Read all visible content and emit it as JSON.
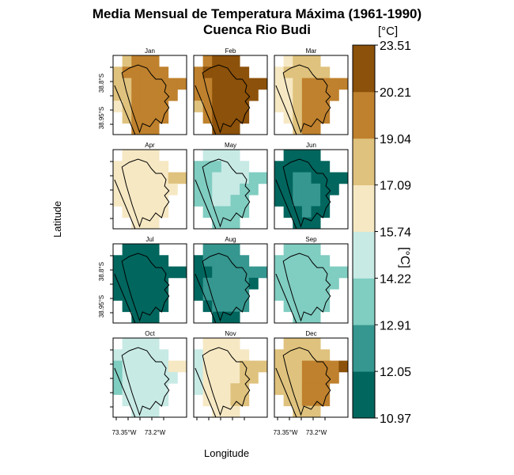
{
  "title_line1": "Media Mensual de Temperatura Máxima (1961-1990)",
  "title_line2": "Cuenca Rio Budi",
  "chart_data": {
    "type": "heatmap",
    "xlabel": "Longitude",
    "ylabel": "Latitude",
    "x_tick_labels": [
      "73.35°W",
      "73.2°W"
    ],
    "y_tick_labels": [
      "38.8°S",
      "38.95°S"
    ],
    "legend": {
      "title": "[°C]",
      "side_label": "[°C]",
      "breaks": [
        "10.97",
        "12.05",
        "12.91",
        "14.22",
        "15.74",
        "17.09",
        "19.04",
        "20.21",
        "23.51"
      ],
      "colors": [
        "#01665e",
        "#35978f",
        "#80cdc1",
        "#c7eae5",
        "#f6e8c3",
        "#dfc27d",
        "#bf812d",
        "#8c510a"
      ]
    },
    "months": [
      {
        "name": "Jan",
        "grid": [
          [
            -1,
            5,
            6,
            6,
            6,
            -1,
            -1,
            -1
          ],
          [
            5,
            6,
            6,
            6,
            6,
            6,
            -1,
            -1
          ],
          [
            5,
            5,
            6,
            6,
            6,
            6,
            6,
            6
          ],
          [
            5,
            5,
            6,
            6,
            6,
            6,
            6,
            -1
          ],
          [
            4,
            5,
            6,
            6,
            6,
            6,
            -1,
            -1
          ],
          [
            -1,
            5,
            6,
            6,
            6,
            6,
            -1,
            -1
          ],
          [
            -1,
            -1,
            6,
            6,
            6,
            -1,
            -1,
            -1
          ]
        ]
      },
      {
        "name": "Feb",
        "grid": [
          [
            -1,
            6,
            7,
            7,
            7,
            -1,
            -1,
            -1
          ],
          [
            6,
            7,
            7,
            7,
            7,
            7,
            -1,
            -1
          ],
          [
            6,
            6,
            7,
            7,
            7,
            7,
            7,
            7
          ],
          [
            6,
            6,
            7,
            7,
            7,
            7,
            7,
            -1
          ],
          [
            5,
            6,
            7,
            7,
            7,
            7,
            -1,
            -1
          ],
          [
            -1,
            6,
            7,
            7,
            7,
            7,
            -1,
            -1
          ],
          [
            -1,
            -1,
            7,
            7,
            7,
            -1,
            -1,
            -1
          ]
        ]
      },
      {
        "name": "Mar",
        "grid": [
          [
            -1,
            4,
            5,
            5,
            5,
            -1,
            -1,
            -1
          ],
          [
            4,
            5,
            5,
            5,
            5,
            5,
            -1,
            -1
          ],
          [
            4,
            4,
            5,
            6,
            6,
            6,
            6,
            6
          ],
          [
            4,
            4,
            5,
            6,
            6,
            6,
            6,
            -1
          ],
          [
            4,
            4,
            5,
            6,
            6,
            6,
            -1,
            -1
          ],
          [
            -1,
            4,
            5,
            6,
            6,
            6,
            -1,
            -1
          ],
          [
            -1,
            -1,
            5,
            6,
            6,
            -1,
            -1,
            -1
          ]
        ]
      },
      {
        "name": "Apr",
        "grid": [
          [
            -1,
            4,
            4,
            4,
            4,
            -1,
            -1,
            -1
          ],
          [
            4,
            4,
            4,
            4,
            4,
            4,
            -1,
            -1
          ],
          [
            4,
            4,
            4,
            4,
            4,
            4,
            5,
            5
          ],
          [
            4,
            4,
            4,
            4,
            4,
            4,
            4,
            -1
          ],
          [
            4,
            4,
            4,
            4,
            4,
            4,
            -1,
            -1
          ],
          [
            -1,
            4,
            4,
            4,
            4,
            4,
            -1,
            -1
          ],
          [
            -1,
            -1,
            4,
            4,
            4,
            -1,
            -1,
            -1
          ]
        ]
      },
      {
        "name": "May",
        "grid": [
          [
            -1,
            3,
            3,
            3,
            3,
            -1,
            -1,
            -1
          ],
          [
            2,
            2,
            2,
            3,
            3,
            3,
            -1,
            -1
          ],
          [
            2,
            2,
            3,
            3,
            3,
            3,
            2,
            2
          ],
          [
            2,
            2,
            3,
            3,
            3,
            2,
            2,
            -1
          ],
          [
            2,
            2,
            3,
            3,
            2,
            2,
            -1,
            -1
          ],
          [
            -1,
            2,
            2,
            2,
            2,
            2,
            -1,
            -1
          ],
          [
            -1,
            -1,
            2,
            2,
            2,
            -1,
            -1,
            -1
          ]
        ]
      },
      {
        "name": "Jun",
        "grid": [
          [
            -1,
            0,
            0,
            0,
            0,
            -1,
            -1,
            -1
          ],
          [
            0,
            0,
            0,
            0,
            0,
            0,
            -1,
            -1
          ],
          [
            0,
            0,
            1,
            1,
            0,
            0,
            0,
            0
          ],
          [
            0,
            0,
            1,
            1,
            1,
            0,
            0,
            -1
          ],
          [
            0,
            0,
            1,
            1,
            1,
            0,
            -1,
            -1
          ],
          [
            -1,
            0,
            0,
            1,
            0,
            0,
            -1,
            -1
          ],
          [
            -1,
            -1,
            0,
            0,
            0,
            -1,
            -1,
            -1
          ]
        ]
      },
      {
        "name": "Jul",
        "grid": [
          [
            -1,
            0,
            0,
            0,
            0,
            -1,
            -1,
            -1
          ],
          [
            0,
            0,
            0,
            0,
            0,
            0,
            -1,
            -1
          ],
          [
            0,
            0,
            0,
            0,
            0,
            0,
            0,
            0
          ],
          [
            0,
            0,
            0,
            0,
            0,
            0,
            -1,
            -1
          ],
          [
            0,
            0,
            0,
            0,
            0,
            0,
            -1,
            -1
          ],
          [
            -1,
            0,
            0,
            0,
            0,
            0,
            -1,
            -1
          ],
          [
            -1,
            -1,
            0,
            0,
            0,
            -1,
            -1,
            -1
          ]
        ]
      },
      {
        "name": "Aug",
        "grid": [
          [
            -1,
            1,
            1,
            1,
            1,
            -1,
            -1,
            -1
          ],
          [
            0,
            1,
            1,
            1,
            1,
            1,
            -1,
            -1
          ],
          [
            0,
            0,
            1,
            1,
            1,
            1,
            1,
            1
          ],
          [
            0,
            1,
            1,
            1,
            1,
            1,
            0,
            -1
          ],
          [
            0,
            1,
            1,
            1,
            1,
            1,
            -1,
            -1
          ],
          [
            -1,
            0,
            1,
            1,
            1,
            1,
            -1,
            -1
          ],
          [
            -1,
            -1,
            0,
            0,
            0,
            -1,
            -1,
            -1
          ]
        ]
      },
      {
        "name": "Sep",
        "grid": [
          [
            -1,
            2,
            2,
            2,
            2,
            -1,
            -1,
            -1
          ],
          [
            2,
            2,
            2,
            2,
            2,
            2,
            -1,
            -1
          ],
          [
            2,
            2,
            2,
            2,
            2,
            2,
            2,
            2
          ],
          [
            2,
            2,
            2,
            2,
            2,
            2,
            2,
            -1
          ],
          [
            2,
            2,
            2,
            2,
            2,
            2,
            -1,
            -1
          ],
          [
            -1,
            2,
            2,
            2,
            2,
            2,
            -1,
            -1
          ],
          [
            -1,
            -1,
            2,
            2,
            2,
            -1,
            -1,
            -1
          ]
        ]
      },
      {
        "name": "Oct",
        "grid": [
          [
            -1,
            3,
            3,
            3,
            3,
            -1,
            -1,
            -1
          ],
          [
            3,
            3,
            3,
            3,
            3,
            3,
            -1,
            -1
          ],
          [
            2,
            3,
            3,
            3,
            3,
            3,
            4,
            4
          ],
          [
            2,
            3,
            3,
            3,
            3,
            3,
            3,
            -1
          ],
          [
            2,
            3,
            3,
            3,
            3,
            3,
            -1,
            -1
          ],
          [
            -1,
            3,
            3,
            3,
            3,
            3,
            -1,
            -1
          ],
          [
            -1,
            -1,
            3,
            3,
            3,
            -1,
            -1,
            -1
          ]
        ]
      },
      {
        "name": "Nov",
        "grid": [
          [
            -1,
            4,
            4,
            4,
            4,
            -1,
            -1,
            -1
          ],
          [
            3,
            4,
            4,
            4,
            4,
            4,
            -1,
            -1
          ],
          [
            3,
            4,
            4,
            4,
            4,
            5,
            5,
            5
          ],
          [
            3,
            4,
            4,
            4,
            4,
            5,
            5,
            -1
          ],
          [
            3,
            4,
            4,
            4,
            5,
            5,
            -1,
            -1
          ],
          [
            -1,
            4,
            4,
            4,
            5,
            5,
            -1,
            -1
          ],
          [
            -1,
            -1,
            4,
            4,
            4,
            -1,
            -1,
            -1
          ]
        ]
      },
      {
        "name": "Dec",
        "grid": [
          [
            -1,
            5,
            5,
            5,
            5,
            -1,
            -1,
            -1
          ],
          [
            5,
            5,
            5,
            5,
            5,
            5,
            -1,
            -1
          ],
          [
            5,
            5,
            5,
            6,
            6,
            6,
            6,
            7
          ],
          [
            5,
            5,
            5,
            6,
            6,
            6,
            6,
            -1
          ],
          [
            5,
            5,
            5,
            6,
            6,
            6,
            -1,
            -1
          ],
          [
            -1,
            5,
            5,
            6,
            6,
            6,
            -1,
            -1
          ],
          [
            -1,
            -1,
            5,
            5,
            5,
            -1,
            -1,
            -1
          ]
        ]
      }
    ]
  }
}
